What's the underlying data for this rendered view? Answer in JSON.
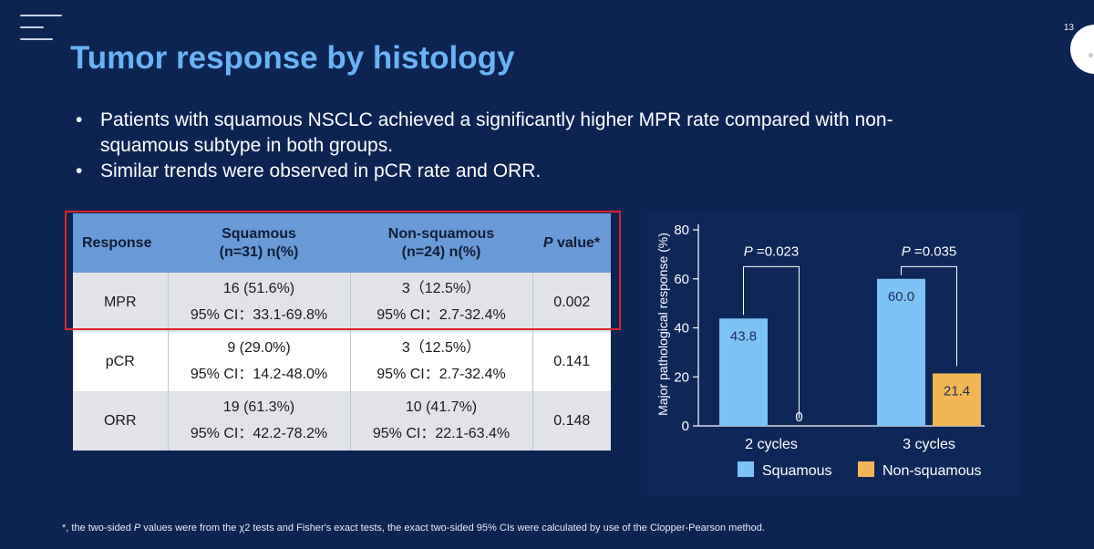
{
  "slide": {
    "number": "13",
    "title": "Tumor response by histology",
    "bullets": [
      "Patients with squamous NSCLC achieved a significantly higher MPR rate compared with non-squamous subtype in both groups.",
      "Similar trends were observed in pCR rate and ORR."
    ]
  },
  "table": {
    "headers": {
      "response": "Response",
      "squamous_line1": "Squamous",
      "squamous_line2": "(n=31) n(%)",
      "nonsquamous_line1": "Non-squamous",
      "nonsquamous_line2": "(n=24) n(%)",
      "p_italic": "P",
      "p_rest": " value*"
    },
    "rows": [
      {
        "response": "MPR",
        "sq_n": "16 (51.6%)",
        "sq_ci": "95% CI：33.1-69.8%",
        "nsq_n": "3（12.5%）",
        "nsq_ci": "95% CI：2.7-32.4%",
        "p": "0.002"
      },
      {
        "response": "pCR",
        "sq_n": "9 (29.0%)",
        "sq_ci": "95% CI：14.2-48.0%",
        "nsq_n": "3（12.5%）",
        "nsq_ci": "95% CI：2.7-32.4%",
        "p": "0.141"
      },
      {
        "response": "ORR",
        "sq_n": "19 (61.3%)",
        "sq_ci": "95% CI：42.2-78.2%",
        "nsq_n": "10 (41.7%)",
        "nsq_ci": "95% CI：22.1-63.4%",
        "p": "0.148"
      }
    ]
  },
  "chart_data": {
    "type": "bar",
    "ylabel": "Major pathological response (%)",
    "ylim": [
      0,
      80
    ],
    "yticks": [
      "0",
      "20",
      "40",
      "60",
      "80"
    ],
    "categories": [
      "2 cycles",
      "3 cycles"
    ],
    "series": [
      {
        "name": "Squamous",
        "color": "#7cc2f5",
        "values": [
          43.8,
          60.0
        ],
        "labels": [
          "43.8",
          "60.0"
        ]
      },
      {
        "name": "Non-squamous",
        "color": "#f2b655",
        "values": [
          0,
          21.4
        ],
        "labels": [
          "0",
          "21.4"
        ]
      }
    ],
    "annotations": [
      {
        "p_italic": "P",
        "p_value": " =0.023"
      },
      {
        "p_italic": "P",
        "p_value": " =0.035"
      }
    ],
    "legend": [
      "Squamous",
      "Non-squamous"
    ]
  },
  "footnote": {
    "prefix": "*, the two-sided ",
    "p_italic": "P",
    "rest": " values were from the χ2 tests and Fisher's exact tests, the exact two-sided 95% CIs were calculated by use of the Clopper-Pearson method."
  }
}
